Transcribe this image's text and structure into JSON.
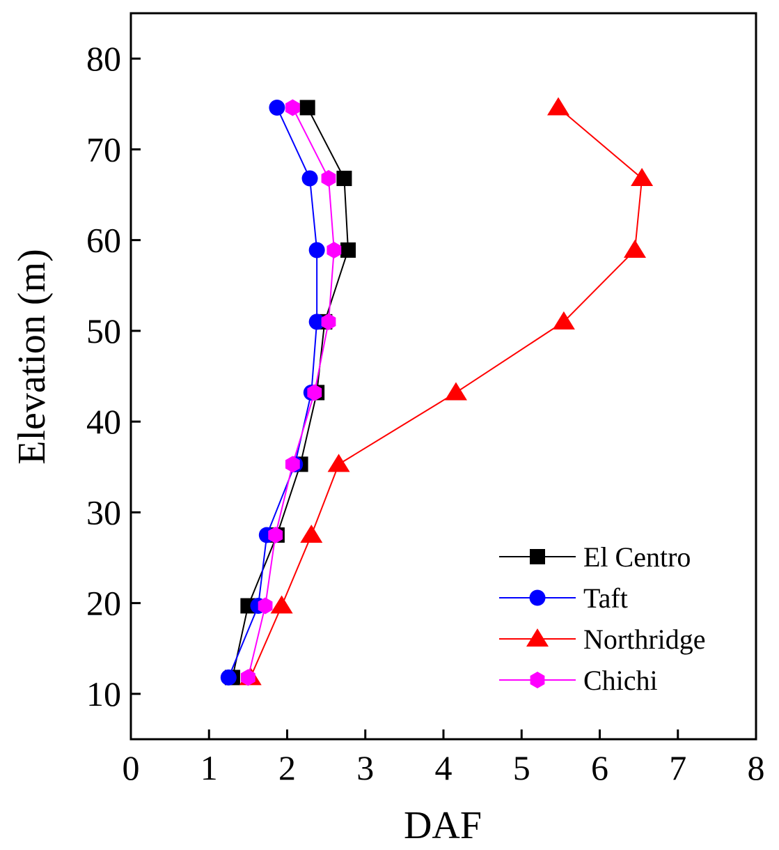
{
  "chart_data": {
    "type": "line",
    "title": "",
    "xlabel": "DAF",
    "ylabel": "Elevation (m)",
    "xlim": [
      0,
      8
    ],
    "ylim": [
      5,
      85
    ],
    "xticks": [
      0,
      1,
      2,
      3,
      4,
      5,
      6,
      7,
      8
    ],
    "yticks": [
      10,
      20,
      30,
      40,
      50,
      60,
      70,
      80
    ],
    "grid": false,
    "legend_position": "bottom-right",
    "series": [
      {
        "name": "El Centro",
        "color": "#000000",
        "marker": "square",
        "points": [
          [
            1.3,
            11.8
          ],
          [
            1.5,
            19.7
          ],
          [
            1.87,
            27.5
          ],
          [
            2.17,
            35.3
          ],
          [
            2.38,
            43.2
          ],
          [
            2.48,
            51.0
          ],
          [
            2.78,
            58.9
          ],
          [
            2.73,
            66.8
          ],
          [
            2.26,
            74.6
          ]
        ]
      },
      {
        "name": "Taft",
        "color": "#0000ff",
        "marker": "circle",
        "points": [
          [
            1.25,
            11.8
          ],
          [
            1.63,
            19.7
          ],
          [
            1.74,
            27.5
          ],
          [
            2.1,
            35.3
          ],
          [
            2.31,
            43.2
          ],
          [
            2.38,
            51.0
          ],
          [
            2.38,
            58.9
          ],
          [
            2.29,
            66.8
          ],
          [
            1.87,
            74.6
          ]
        ]
      },
      {
        "name": "Northridge",
        "color": "#ff0000",
        "marker": "triangle",
        "points": [
          [
            1.53,
            11.8
          ],
          [
            1.93,
            19.7
          ],
          [
            2.31,
            27.5
          ],
          [
            2.66,
            35.3
          ],
          [
            4.16,
            43.2
          ],
          [
            5.54,
            51.0
          ],
          [
            6.45,
            58.9
          ],
          [
            6.54,
            66.8
          ],
          [
            5.47,
            74.6
          ]
        ]
      },
      {
        "name": "Chichi",
        "color": "#ff00ff",
        "marker": "hexagon",
        "points": [
          [
            1.5,
            11.8
          ],
          [
            1.72,
            19.7
          ],
          [
            1.85,
            27.5
          ],
          [
            2.07,
            35.3
          ],
          [
            2.35,
            43.2
          ],
          [
            2.53,
            51.0
          ],
          [
            2.6,
            58.9
          ],
          [
            2.53,
            66.8
          ],
          [
            2.07,
            74.6
          ]
        ]
      }
    ]
  }
}
